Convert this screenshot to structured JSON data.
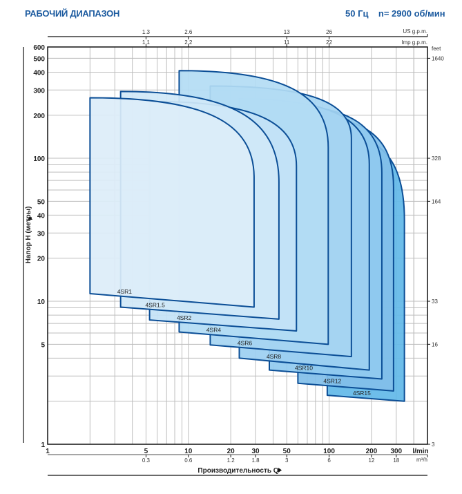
{
  "header": {
    "title": "РАБОЧИЙ ДИАПАЗОН",
    "freq": "50 Гц",
    "speed": "n= 2900 об/мин"
  },
  "chart_data": {
    "type": "area",
    "title": "РАБОЧИЙ ДИАПАЗОН",
    "xlabel": "Производительность Q",
    "ylabel": "Напор H (метры)",
    "x_unit": "l/min",
    "x_scale": "log",
    "y_scale": "log",
    "xlim": [
      1,
      500
    ],
    "ylim": [
      1,
      600
    ],
    "grid": true,
    "x_ticks": [
      1,
      5,
      10,
      20,
      30,
      50,
      100,
      200,
      300
    ],
    "y_ticks": [
      1,
      5,
      10,
      20,
      30,
      40,
      50,
      100,
      200,
      300,
      400,
      500,
      600
    ],
    "secondary_axes": {
      "us_gpm": {
        "label": "US g.p.m.",
        "ticks": [
          {
            "q": 5,
            "v": "1.3"
          },
          {
            "q": 10,
            "v": "2.6"
          },
          {
            "q": 50,
            "v": "13"
          },
          {
            "q": 100,
            "v": "26"
          }
        ]
      },
      "imp_gpm": {
        "label": "Imp g.p.m.",
        "ticks": [
          {
            "q": 5,
            "v": "1.1"
          },
          {
            "q": 10,
            "v": "2.2"
          },
          {
            "q": 50,
            "v": "11"
          },
          {
            "q": 100,
            "v": "22"
          }
        ]
      },
      "m3h": {
        "label": "m³/h",
        "ticks": [
          {
            "q": 5,
            "v": "0.3"
          },
          {
            "q": 10,
            "v": "0.6"
          },
          {
            "q": 20,
            "v": "1.2"
          },
          {
            "q": 30,
            "v": "1.8"
          },
          {
            "q": 50,
            "v": "3"
          },
          {
            "q": 100,
            "v": "6"
          },
          {
            "q": 200,
            "v": "12"
          },
          {
            "q": 300,
            "v": "18"
          }
        ]
      },
      "feet": {
        "label": "feet",
        "ticks": [
          {
            "h": 500,
            "v": "1640"
          },
          {
            "h": 100,
            "v": "328"
          },
          {
            "h": 50,
            "v": "164"
          },
          {
            "h": 10,
            "v": "33"
          },
          {
            "h": 5,
            "v": "16"
          },
          {
            "h": 1,
            "v": "3"
          }
        ]
      }
    },
    "series": [
      {
        "name": "4SR15",
        "q_min": 97,
        "q_max": 343,
        "h_max": 150,
        "h_knee": 37,
        "h_min_left": 2.2,
        "h_min_right": 2.0,
        "color": "#62b8e8"
      },
      {
        "name": "4SR12",
        "q_min": 60,
        "q_max": 287,
        "h_max": 200,
        "h_knee": 63,
        "h_min_left": 2.67,
        "h_min_right": 2.36,
        "color": "#82bfe9"
      },
      {
        "name": "4SR10",
        "q_min": 37.6,
        "q_max": 237,
        "h_max": 240,
        "h_knee": 79,
        "h_min_left": 3.3,
        "h_min_right": 2.86,
        "color": "#90caef"
      },
      {
        "name": "4SR8",
        "q_min": 23,
        "q_max": 193,
        "h_max": 260,
        "h_knee": 91,
        "h_min_left": 4.0,
        "h_min_right": 3.3,
        "color": "#9ccff1"
      },
      {
        "name": "4SR6",
        "q_min": 14.3,
        "q_max": 144,
        "h_max": 320,
        "h_knee": 138,
        "h_min_left": 4.95,
        "h_min_right": 4.1,
        "color": "#a6d5f2"
      },
      {
        "name": "4SR4",
        "q_min": 8.6,
        "q_max": 98.6,
        "h_max": 410,
        "h_knee": 119,
        "h_min_left": 6.1,
        "h_min_right": 5.0,
        "color": "#b3dcf4"
      },
      {
        "name": "4SR2",
        "q_min": 5.3,
        "q_max": 58.6,
        "h_max": 250,
        "h_knee": 88,
        "h_min_left": 7.4,
        "h_min_right": 6.2,
        "color": "#c3e2f6"
      },
      {
        "name": "4SR1.5",
        "q_min": 3.3,
        "q_max": 44,
        "h_max": 293,
        "h_knee": 68,
        "h_min_left": 9.1,
        "h_min_right": 7.5,
        "color": "#d0e8f7"
      },
      {
        "name": "4SR1",
        "q_min": 2,
        "q_max": 29.3,
        "h_max": 265,
        "h_knee": 73,
        "h_min_left": 11.3,
        "h_min_right": 9.1,
        "color": "#dcedf9"
      }
    ],
    "stroke_color": "#0b4e96"
  }
}
